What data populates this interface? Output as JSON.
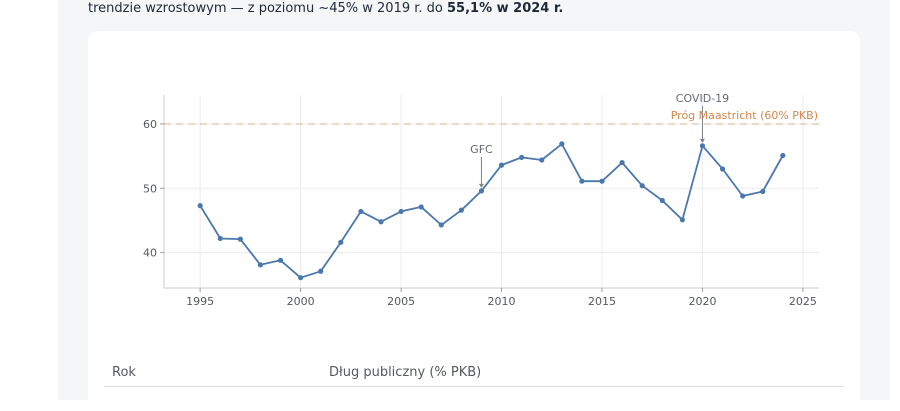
{
  "intro": {
    "text_before": "trendzie wzrostowym — z poziomu ~45% w 2019 r. do ",
    "text_bold": "55,1% w 2024 r."
  },
  "chart_data": {
    "type": "line",
    "title": "",
    "xlabel": "",
    "ylabel": "",
    "xlim": [
      1993.2,
      2025.8
    ],
    "ylim": [
      34.5,
      64.5
    ],
    "x_ticks": [
      1995,
      2000,
      2005,
      2010,
      2015,
      2020,
      2025
    ],
    "y_ticks": [
      40,
      50,
      60
    ],
    "grid": true,
    "line_color": "#4a78ad",
    "ref_color": "#d4864a",
    "series": [
      {
        "x": [
          1995,
          1996,
          1997,
          1998,
          1999,
          2000,
          2001,
          2002,
          2003,
          2004,
          2005,
          2006,
          2007,
          2008,
          2009,
          2010,
          2011,
          2012,
          2013,
          2014,
          2015,
          2016,
          2017,
          2018,
          2019,
          2020,
          2021,
          2022,
          2023,
          2024
        ],
        "values": [
          47.3,
          42.2,
          42.1,
          38.1,
          38.8,
          36.1,
          37.1,
          41.6,
          46.4,
          44.8,
          46.4,
          47.1,
          44.3,
          46.6,
          49.6,
          53.6,
          54.8,
          54.4,
          56.9,
          51.1,
          51.1,
          54.0,
          50.4,
          48.1,
          45.1,
          56.6,
          53.0,
          48.8,
          49.5,
          55.1
        ]
      }
    ],
    "reference_line": {
      "y": 60,
      "label": "Próg Maastricht (60% PKB)"
    },
    "annotations": [
      {
        "text": "GFC",
        "x": 2009,
        "y": 49.6
      },
      {
        "text": "COVID-19",
        "x": 2020,
        "y": 56.6
      }
    ]
  },
  "table": {
    "col_year": "Rok",
    "col_debt": "Dług publiczny (% PKB)"
  }
}
